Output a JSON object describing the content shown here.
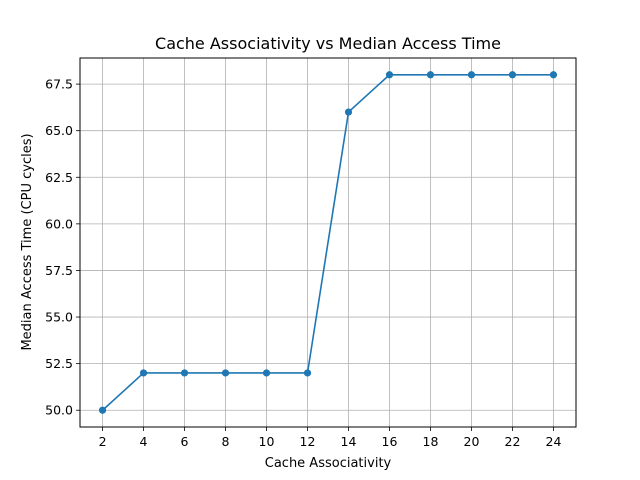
{
  "chart_data": {
    "type": "line",
    "title": "Cache Associativity vs Median Access Time",
    "xlabel": "Cache Associativity",
    "ylabel": "Median Access Time (CPU cycles)",
    "x": [
      2,
      4,
      6,
      8,
      10,
      12,
      14,
      16,
      18,
      20,
      22,
      24
    ],
    "series": [
      {
        "values": [
          50,
          52,
          52,
          52,
          52,
          52,
          66,
          68,
          68,
          68,
          68,
          68
        ]
      }
    ],
    "xticks": [
      2,
      4,
      6,
      8,
      10,
      12,
      14,
      16,
      18,
      20,
      22,
      24
    ],
    "xtick_labels": [
      "2",
      "4",
      "6",
      "8",
      "10",
      "12",
      "14",
      "16",
      "18",
      "20",
      "22",
      "24"
    ],
    "yticks": [
      50,
      52.5,
      55,
      57.5,
      60,
      62.5,
      65,
      67.5
    ],
    "ytick_labels": [
      "50.0",
      "52.5",
      "55.0",
      "57.5",
      "60.0",
      "62.5",
      "65.0",
      "67.5"
    ],
    "xlim": [
      0.9,
      25.1
    ],
    "ylim": [
      49.1,
      68.9
    ],
    "grid": true,
    "marker": "circle",
    "line_color": "#1f77b4",
    "grid_color": "#b0b0b0"
  }
}
